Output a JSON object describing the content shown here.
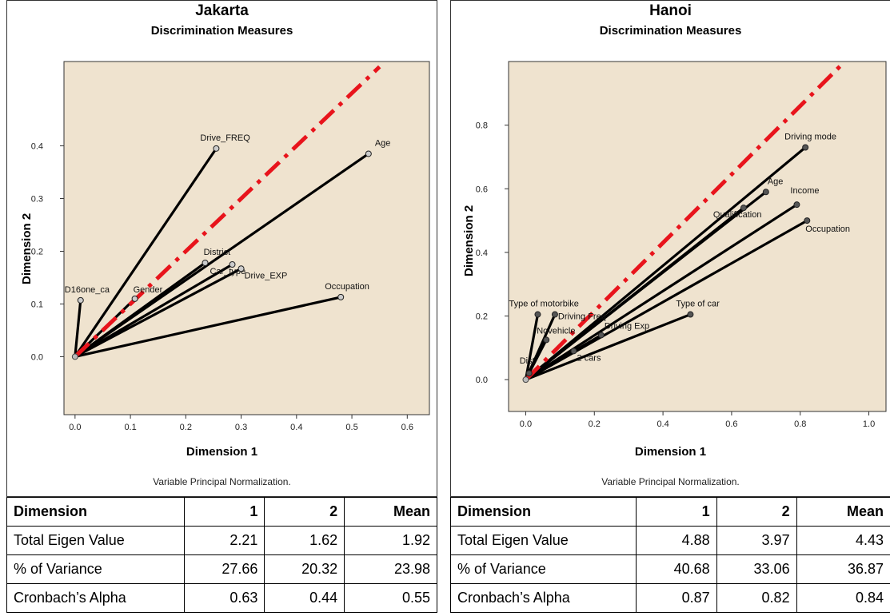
{
  "chart_data": [
    {
      "type": "scatter",
      "title": "Jakarta",
      "subtitle": "Discrimination Measures",
      "xlabel": "Dimension 1",
      "ylabel": "Dimension 2",
      "note": "Variable Principal Normalization.",
      "xlim": [
        -0.02,
        0.64
      ],
      "ylim": [
        -0.11,
        0.56
      ],
      "xticks": [
        0.0,
        0.1,
        0.2,
        0.3,
        0.4,
        0.5,
        0.6
      ],
      "yticks": [
        0.0,
        0.1,
        0.2,
        0.3,
        0.4
      ],
      "grid": false,
      "reference_line": {
        "x": [
          0.0,
          0.55
        ],
        "y": [
          0.0,
          0.55
        ],
        "style": "red dash-dot"
      },
      "points": [
        {
          "label": "Drive_FREQ",
          "x": 0.255,
          "y": 0.395
        },
        {
          "label": "Age",
          "x": 0.53,
          "y": 0.385
        },
        {
          "label": "District",
          "x": 0.235,
          "y": 0.178
        },
        {
          "label": "Car_type",
          "x": 0.284,
          "y": 0.175
        },
        {
          "label": "Drive_EXP",
          "x": 0.3,
          "y": 0.167
        },
        {
          "label": "Gender",
          "x": 0.108,
          "y": 0.11
        },
        {
          "label": "D16one_ca",
          "x": 0.01,
          "y": 0.107
        },
        {
          "label": "Occupation",
          "x": 0.48,
          "y": 0.113
        }
      ]
    },
    {
      "type": "scatter",
      "title": "Hanoi",
      "subtitle": "Discrimination Measures",
      "xlabel": "Dimension 1",
      "ylabel": "Dimension 2",
      "note": "Variable Principal Normalization.",
      "xlim": [
        -0.05,
        1.05
      ],
      "ylim": [
        -0.1,
        1.0
      ],
      "xticks": [
        0.0,
        0.2,
        0.4,
        0.6,
        0.8,
        1.0
      ],
      "yticks": [
        0.0,
        0.2,
        0.4,
        0.6,
        0.8
      ],
      "grid": false,
      "reference_line": {
        "x": [
          0.0,
          0.93
        ],
        "y": [
          0.0,
          1.0
        ],
        "style": "red dash-dot"
      },
      "points": [
        {
          "label": "Driving mode",
          "x": 0.815,
          "y": 0.73
        },
        {
          "label": "Age",
          "x": 0.7,
          "y": 0.59
        },
        {
          "label": "Income",
          "x": 0.79,
          "y": 0.55
        },
        {
          "label": "Qualification",
          "x": 0.635,
          "y": 0.54
        },
        {
          "label": "Occupation",
          "x": 0.82,
          "y": 0.5
        },
        {
          "label": "Type of car",
          "x": 0.48,
          "y": 0.205
        },
        {
          "label": "Type of motorbike",
          "x": 0.035,
          "y": 0.205
        },
        {
          "label": "Driving Freq",
          "x": 0.085,
          "y": 0.205
        },
        {
          "label": "Novehicle",
          "x": 0.06,
          "y": 0.125
        },
        {
          "label": "Driving Exp",
          "x": 0.22,
          "y": 0.14
        },
        {
          "label": "2 cars",
          "x": 0.14,
          "y": 0.09
        },
        {
          "label": "Dist",
          "x": 0.01,
          "y": 0.02
        }
      ]
    }
  ],
  "tables": [
    {
      "header": [
        "Dimension",
        "1",
        "2",
        "Mean"
      ],
      "rows": [
        [
          "Total Eigen Value",
          "2.21",
          "1.62",
          "1.92"
        ],
        [
          "% of Variance",
          "27.66",
          "20.32",
          "23.98"
        ],
        [
          "Cronbach’s Alpha",
          "0.63",
          "0.44",
          "0.55"
        ]
      ]
    },
    {
      "header": [
        "Dimension",
        "1",
        "2",
        "Mean"
      ],
      "rows": [
        [
          "Total Eigen Value",
          "4.88",
          "3.97",
          "4.43"
        ],
        [
          "% of Variance",
          "40.68",
          "33.06",
          "36.87"
        ],
        [
          "Cronbach’s Alpha",
          "0.87",
          "0.82",
          "0.84"
        ]
      ]
    }
  ]
}
